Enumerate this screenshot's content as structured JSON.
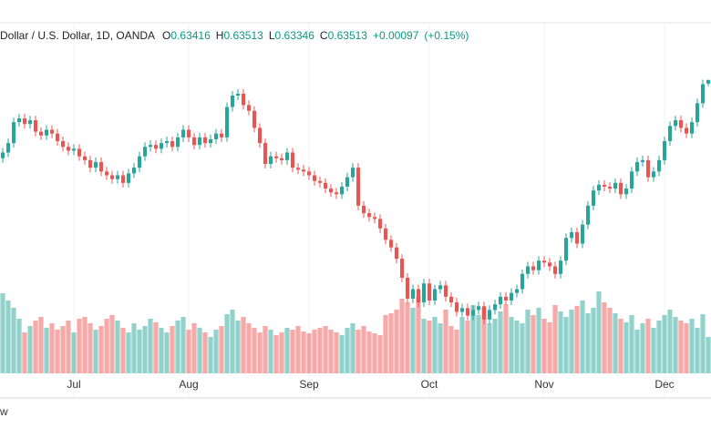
{
  "chart_data": {
    "type": "candlestick",
    "title": "Dollar / U.S. Dollar, 1D, OANDA",
    "ohlc_letters": [
      "O",
      "H",
      "L",
      "C"
    ],
    "change": {
      "value": 0.00097,
      "label": "+0.00097"
    },
    "change_pct": {
      "value": 0.15,
      "label": "(+0.15%)"
    },
    "open": [
      0.6145,
      0.616,
      0.6185,
      0.624,
      0.625,
      0.6235,
      0.6245,
      0.6215,
      0.6205,
      0.622,
      0.621,
      0.619,
      0.6175,
      0.6165,
      0.617,
      0.615,
      0.614,
      0.612,
      0.6135,
      0.611,
      0.61,
      0.609,
      0.61,
      0.608,
      0.6105,
      0.612,
      0.615,
      0.6175,
      0.618,
      0.617,
      0.6185,
      0.619,
      0.6175,
      0.62,
      0.622,
      0.62,
      0.618,
      0.62,
      0.6185,
      0.6195,
      0.621,
      0.62,
      0.628,
      0.631,
      0.6315,
      0.6285,
      0.627,
      0.6225,
      0.6185,
      0.613,
      0.615,
      0.6145,
      0.614,
      0.616,
      0.612,
      0.6115,
      0.611,
      0.61,
      0.6085,
      0.608,
      0.6065,
      0.6055,
      0.605,
      0.607,
      0.6095,
      0.612,
      0.602,
      0.6,
      0.599,
      0.5985,
      0.596,
      0.593,
      0.591,
      0.588,
      0.583,
      0.5775,
      0.58,
      0.5765,
      0.5815,
      0.577,
      0.58,
      0.581,
      0.578,
      0.5765,
      0.574,
      0.575,
      0.573,
      0.5745,
      0.5755,
      0.572,
      0.5745,
      0.576,
      0.578,
      0.577,
      0.579,
      0.58,
      0.584,
      0.586,
      0.585,
      0.5875,
      0.587,
      0.586,
      0.584,
      0.5875,
      0.5935,
      0.595,
      0.592,
      0.597,
      0.602,
      0.606,
      0.6075,
      0.607,
      0.6065,
      0.608,
      0.605,
      0.6065,
      0.611,
      0.6135,
      0.614,
      0.6095,
      0.611,
      0.614,
      0.619,
      0.623,
      0.6245,
      0.6225,
      0.621,
      0.624,
      0.629,
      0.63416
    ],
    "high": [
      0.6172,
      0.6197,
      0.6252,
      0.6262,
      0.6262,
      0.6257,
      0.6257,
      0.6227,
      0.6232,
      0.6232,
      0.6222,
      0.6202,
      0.6187,
      0.6182,
      0.6182,
      0.6162,
      0.6152,
      0.6147,
      0.6147,
      0.6122,
      0.6112,
      0.6112,
      0.6112,
      0.6117,
      0.6132,
      0.6162,
      0.6187,
      0.6192,
      0.6192,
      0.6197,
      0.6202,
      0.6202,
      0.6212,
      0.6232,
      0.6232,
      0.6212,
      0.6212,
      0.6212,
      0.6207,
      0.6222,
      0.6222,
      0.6292,
      0.6322,
      0.6327,
      0.6327,
      0.6297,
      0.6282,
      0.6237,
      0.6197,
      0.6162,
      0.6162,
      0.6157,
      0.6172,
      0.6172,
      0.6132,
      0.6127,
      0.6122,
      0.6112,
      0.6097,
      0.6092,
      0.6077,
      0.6067,
      0.6082,
      0.6107,
      0.6132,
      0.6132,
      0.6032,
      0.6012,
      0.6002,
      0.5997,
      0.5972,
      0.5942,
      0.5922,
      0.5892,
      0.5842,
      0.5812,
      0.5812,
      0.5827,
      0.5827,
      0.5812,
      0.5822,
      0.5822,
      0.5792,
      0.5777,
      0.5762,
      0.5762,
      0.5757,
      0.5767,
      0.5767,
      0.5757,
      0.5772,
      0.5792,
      0.5792,
      0.5802,
      0.5812,
      0.5852,
      0.5872,
      0.5872,
      0.5887,
      0.5887,
      0.5882,
      0.5872,
      0.5887,
      0.5947,
      0.5962,
      0.5962,
      0.5982,
      0.6032,
      0.6072,
      0.6087,
      0.6087,
      0.6082,
      0.6092,
      0.6092,
      0.6077,
      0.6122,
      0.6147,
      0.6152,
      0.6152,
      0.6122,
      0.6152,
      0.6202,
      0.6242,
      0.6257,
      0.6257,
      0.6237,
      0.6252,
      0.6302,
      0.6352,
      0.63513
    ],
    "low": [
      0.6133,
      0.6148,
      0.6173,
      0.6228,
      0.6223,
      0.6223,
      0.6203,
      0.6193,
      0.6193,
      0.6198,
      0.6178,
      0.6163,
      0.6153,
      0.6153,
      0.6138,
      0.6128,
      0.6108,
      0.6108,
      0.6098,
      0.6088,
      0.6078,
      0.6078,
      0.6068,
      0.6068,
      0.6093,
      0.6108,
      0.6138,
      0.6163,
      0.6158,
      0.6158,
      0.6173,
      0.6163,
      0.6163,
      0.6188,
      0.6188,
      0.6168,
      0.6168,
      0.6173,
      0.6173,
      0.6183,
      0.6188,
      0.6188,
      0.6268,
      0.6298,
      0.6273,
      0.6258,
      0.6213,
      0.6173,
      0.6118,
      0.6118,
      0.6133,
      0.6128,
      0.6128,
      0.6108,
      0.6103,
      0.6098,
      0.6088,
      0.6073,
      0.6068,
      0.6053,
      0.6043,
      0.6038,
      0.6038,
      0.6058,
      0.6083,
      0.6008,
      0.5988,
      0.5978,
      0.5973,
      0.5948,
      0.5918,
      0.5898,
      0.5868,
      0.5818,
      0.5763,
      0.5763,
      0.5753,
      0.5753,
      0.5758,
      0.5758,
      0.5788,
      0.5768,
      0.5753,
      0.5728,
      0.5728,
      0.5718,
      0.5718,
      0.5733,
      0.5708,
      0.5708,
      0.5733,
      0.5748,
      0.5758,
      0.5758,
      0.5778,
      0.5788,
      0.5828,
      0.5838,
      0.5838,
      0.5858,
      0.5848,
      0.5828,
      0.5828,
      0.5863,
      0.5923,
      0.5908,
      0.5908,
      0.5958,
      0.6008,
      0.6048,
      0.6058,
      0.6053,
      0.6053,
      0.6038,
      0.6038,
      0.6053,
      0.6098,
      0.6123,
      0.6083,
      0.6083,
      0.6098,
      0.6128,
      0.6178,
      0.6218,
      0.6213,
      0.6198,
      0.6198,
      0.6228,
      0.6278,
      0.63346
    ],
    "close": [
      0.616,
      0.6185,
      0.624,
      0.625,
      0.6235,
      0.6245,
      0.6215,
      0.6205,
      0.622,
      0.621,
      0.619,
      0.6175,
      0.6165,
      0.617,
      0.615,
      0.614,
      0.612,
      0.6135,
      0.611,
      0.61,
      0.609,
      0.61,
      0.608,
      0.6105,
      0.612,
      0.615,
      0.6175,
      0.618,
      0.617,
      0.6185,
      0.619,
      0.6175,
      0.62,
      0.622,
      0.62,
      0.618,
      0.62,
      0.6185,
      0.6195,
      0.621,
      0.62,
      0.628,
      0.631,
      0.6315,
      0.6285,
      0.627,
      0.6225,
      0.6185,
      0.613,
      0.615,
      0.6145,
      0.614,
      0.616,
      0.612,
      0.6115,
      0.611,
      0.61,
      0.6085,
      0.608,
      0.6065,
      0.6055,
      0.605,
      0.607,
      0.6095,
      0.612,
      0.602,
      0.6,
      0.599,
      0.5985,
      0.596,
      0.593,
      0.591,
      0.588,
      0.583,
      0.5775,
      0.58,
      0.5765,
      0.5815,
      0.577,
      0.58,
      0.581,
      0.578,
      0.5765,
      0.574,
      0.575,
      0.573,
      0.5745,
      0.5755,
      0.572,
      0.5745,
      0.576,
      0.578,
      0.577,
      0.579,
      0.58,
      0.584,
      0.586,
      0.585,
      0.5875,
      0.587,
      0.586,
      0.584,
      0.5875,
      0.5935,
      0.595,
      0.592,
      0.597,
      0.602,
      0.606,
      0.6075,
      0.607,
      0.6065,
      0.608,
      0.605,
      0.6065,
      0.611,
      0.6135,
      0.614,
      0.6095,
      0.611,
      0.614,
      0.619,
      0.623,
      0.6245,
      0.6225,
      0.621,
      0.624,
      0.629,
      0.634,
      0.63513
    ],
    "volume": [
      88,
      80,
      72,
      60,
      45,
      52,
      58,
      62,
      50,
      55,
      48,
      52,
      58,
      45,
      60,
      62,
      55,
      48,
      52,
      60,
      64,
      58,
      50,
      45,
      55,
      48,
      52,
      60,
      56,
      50,
      45,
      52,
      58,
      62,
      48,
      55,
      50,
      45,
      40,
      48,
      52,
      65,
      70,
      58,
      62,
      55,
      50,
      45,
      52,
      48,
      42,
      45,
      50,
      48,
      52,
      46,
      44,
      48,
      50,
      52,
      48,
      45,
      42,
      50,
      55,
      48,
      52,
      46,
      44,
      42,
      64,
      66,
      70,
      82,
      78,
      72,
      85,
      60,
      58,
      62,
      55,
      70,
      52,
      48,
      62,
      58,
      75,
      64,
      72,
      55,
      60,
      68,
      76,
      62,
      58,
      55,
      70,
      64,
      72,
      60,
      56,
      75,
      68,
      62,
      70,
      74,
      80,
      66,
      72,
      90,
      78,
      72,
      66,
      60,
      56,
      64,
      48,
      55,
      60,
      50,
      58,
      64,
      70,
      62,
      58,
      55,
      60,
      50,
      65,
      40
    ],
    "up_color": "#26a69a",
    "down_color": "#ef5350",
    "xlim": [
      -0.5,
      129.5
    ],
    "xticks": [
      {
        "value": 13,
        "label": "Jul"
      },
      {
        "value": 34,
        "label": "Aug"
      },
      {
        "value": 56,
        "label": "Sep"
      },
      {
        "value": 78,
        "label": "Oct"
      },
      {
        "value": 99,
        "label": "Nov"
      },
      {
        "value": 121,
        "label": "Dec"
      }
    ],
    "ylim": [
      0.5578,
      0.6502
    ],
    "y2lim": [
      0,
      100
    ]
  },
  "footer": "w"
}
